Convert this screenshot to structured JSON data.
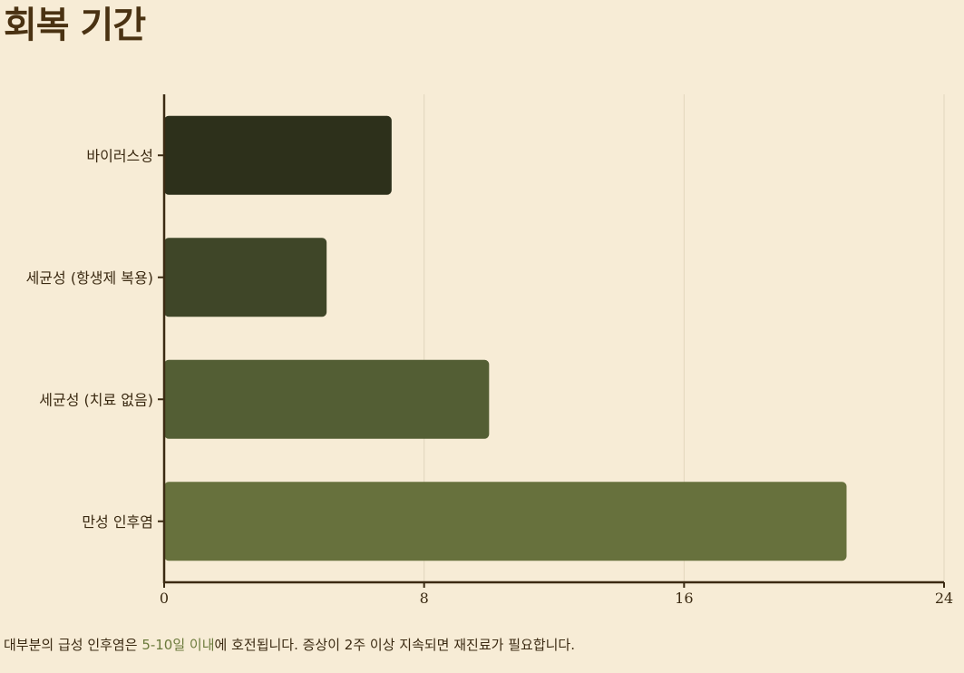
{
  "title": "회복 기간",
  "chart_data": {
    "type": "bar",
    "orientation": "horizontal",
    "categories": [
      "바이러스성",
      "세균성 (항생제 복용)",
      "세균성 (치료 없음)",
      "만성 인후염"
    ],
    "values": [
      7,
      5,
      10,
      21
    ],
    "colors": [
      "#2d301b",
      "#3f4628",
      "#535e34",
      "#67713d"
    ],
    "xlim": [
      0,
      24
    ],
    "xticks": [
      0,
      8,
      16,
      24
    ],
    "xlabel": "",
    "ylabel": "",
    "grid": "vertical",
    "legend": "none"
  },
  "footnote": {
    "before": "대부분의 급성 인후염은 ",
    "highlight": "5-10일 이내",
    "after": "에 호전됩니다. 증상이 2주 이상 지속되면 재진료가 필요합니다."
  },
  "colors": {
    "background": "#f7ecd6",
    "axis": "#3b2a12",
    "grid": "#e2d6bd",
    "highlight": "#6b7a3c"
  }
}
